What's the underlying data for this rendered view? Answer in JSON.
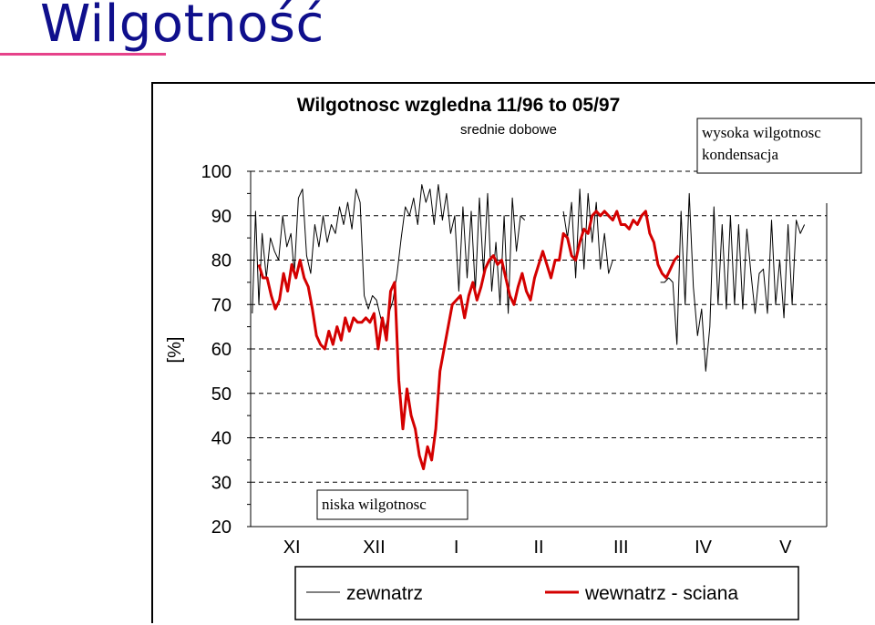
{
  "slide": {
    "title": "Wilgotność"
  },
  "chart_data": {
    "type": "line",
    "title": "Wilgotnosc wzgledna 11/96 to 05/97",
    "subtitle": "srednie dobowe",
    "ylabel": "[%]",
    "xlabel": "",
    "ylim": [
      20,
      100
    ],
    "yticks": [
      20,
      30,
      40,
      50,
      60,
      70,
      80,
      90,
      100
    ],
    "x_categories": [
      "XI",
      "XII",
      "I",
      "II",
      "III",
      "IV",
      "V"
    ],
    "xlim": [
      0,
      7
    ],
    "grid": {
      "horizontal_dashed": true
    },
    "legend": {
      "position": "bottom"
    },
    "annotations": [
      {
        "text": "wysoka wilgotnosc kondensacja",
        "lines": [
          "wysoka wilgotnosc",
          "kondensacja"
        ]
      },
      {
        "text": "niska wilgotnosc",
        "lines": [
          "niska wilgotnosc"
        ]
      }
    ],
    "series": [
      {
        "name": "zewnatrz",
        "color": "#000000",
        "segments": [
          [
            [
              0.02,
              68
            ],
            [
              0.06,
              91
            ],
            [
              0.1,
              70
            ],
            [
              0.14,
              86
            ],
            [
              0.19,
              76
            ],
            [
              0.24,
              85
            ],
            [
              0.29,
              82
            ],
            [
              0.34,
              80
            ],
            [
              0.39,
              90
            ],
            [
              0.44,
              83
            ],
            [
              0.49,
              86
            ],
            [
              0.53,
              77
            ],
            [
              0.58,
              94
            ],
            [
              0.63,
              96
            ],
            [
              0.68,
              81
            ],
            [
              0.73,
              77
            ],
            [
              0.78,
              88
            ],
            [
              0.83,
              83
            ],
            [
              0.88,
              90
            ],
            [
              0.93,
              84
            ],
            [
              0.98,
              88
            ],
            [
              1.03,
              86
            ],
            [
              1.08,
              92
            ],
            [
              1.13,
              88
            ],
            [
              1.18,
              93
            ],
            [
              1.23,
              87
            ],
            [
              1.28,
              96
            ],
            [
              1.33,
              93
            ],
            [
              1.38,
              72
            ],
            [
              1.43,
              69
            ],
            [
              1.48,
              72
            ],
            [
              1.53,
              71
            ],
            [
              1.58,
              67
            ],
            [
              1.63,
              64
            ],
            [
              1.68,
              68
            ],
            [
              1.73,
              71
            ],
            [
              1.78,
              77
            ],
            [
              1.83,
              85
            ],
            [
              1.88,
              92
            ],
            [
              1.93,
              90
            ],
            [
              1.98,
              94
            ],
            [
              2.03,
              88
            ],
            [
              2.08,
              97
            ],
            [
              2.13,
              93
            ],
            [
              2.18,
              96
            ],
            [
              2.23,
              88
            ],
            [
              2.28,
              97
            ],
            [
              2.33,
              89
            ],
            [
              2.38,
              95
            ],
            [
              2.43,
              86
            ],
            [
              2.48,
              90
            ],
            [
              2.53,
              73
            ],
            [
              2.58,
              92
            ],
            [
              2.63,
              76
            ],
            [
              2.68,
              91
            ],
            [
              2.73,
              73
            ],
            [
              2.78,
              94
            ],
            [
              2.83,
              77
            ],
            [
              2.88,
              95
            ],
            [
              2.93,
              73
            ],
            [
              2.98,
              84
            ],
            [
              3.03,
              70
            ],
            [
              3.08,
              90
            ],
            [
              3.13,
              68
            ],
            [
              3.18,
              94
            ],
            [
              3.23,
              82
            ],
            [
              3.28,
              90
            ],
            [
              3.33,
              89
            ]
          ],
          [
            [
              3.8,
              91
            ],
            [
              3.85,
              85
            ],
            [
              3.9,
              93
            ],
            [
              3.95,
              76
            ],
            [
              4.0,
              96
            ],
            [
              4.05,
              78
            ],
            [
              4.1,
              95
            ],
            [
              4.15,
              84
            ],
            [
              4.2,
              93
            ],
            [
              4.25,
              78
            ],
            [
              4.3,
              86
            ],
            [
              4.35,
              77
            ],
            [
              4.4,
              80
            ]
          ],
          [
            [
              4.98,
              75
            ],
            [
              5.03,
              75
            ],
            [
              5.08,
              76
            ],
            [
              5.13,
              75
            ],
            [
              5.18,
              61
            ],
            [
              5.23,
              91
            ],
            [
              5.28,
              70
            ],
            [
              5.33,
              95
            ],
            [
              5.38,
              74
            ],
            [
              5.43,
              63
            ],
            [
              5.48,
              69
            ],
            [
              5.53,
              55
            ],
            [
              5.58,
              65
            ],
            [
              5.63,
              92
            ],
            [
              5.68,
              70
            ],
            [
              5.73,
              88
            ],
            [
              5.78,
              69
            ],
            [
              5.83,
              90
            ],
            [
              5.88,
              70
            ],
            [
              5.93,
              88
            ],
            [
              5.98,
              69
            ],
            [
              6.03,
              87
            ],
            [
              6.08,
              77
            ],
            [
              6.13,
              68
            ],
            [
              6.18,
              77
            ],
            [
              6.23,
              78
            ],
            [
              6.28,
              68
            ],
            [
              6.33,
              89
            ],
            [
              6.38,
              70
            ],
            [
              6.43,
              80
            ],
            [
              6.48,
              67
            ],
            [
              6.53,
              88
            ],
            [
              6.58,
              70
            ],
            [
              6.63,
              89
            ],
            [
              6.68,
              86
            ],
            [
              6.73,
              88
            ]
          ]
        ]
      },
      {
        "name": "wewnatrz - sciana",
        "color": "#d40000",
        "segments": [
          [
            [
              0.1,
              79
            ],
            [
              0.15,
              76
            ],
            [
              0.2,
              76
            ],
            [
              0.25,
              72
            ],
            [
              0.3,
              69
            ],
            [
              0.35,
              71
            ],
            [
              0.4,
              77
            ],
            [
              0.45,
              73
            ],
            [
              0.5,
              79
            ],
            [
              0.55,
              76
            ],
            [
              0.6,
              80
            ],
            [
              0.65,
              76
            ],
            [
              0.7,
              74
            ],
            [
              0.75,
              69
            ],
            [
              0.8,
              63
            ],
            [
              0.85,
              61
            ],
            [
              0.9,
              60
            ],
            [
              0.95,
              64
            ],
            [
              1.0,
              61
            ],
            [
              1.05,
              65
            ],
            [
              1.1,
              62
            ],
            [
              1.15,
              67
            ],
            [
              1.2,
              64
            ],
            [
              1.25,
              67
            ],
            [
              1.3,
              66
            ],
            [
              1.35,
              66
            ],
            [
              1.4,
              67
            ],
            [
              1.45,
              66
            ],
            [
              1.5,
              68
            ],
            [
              1.55,
              60
            ],
            [
              1.6,
              67
            ],
            [
              1.65,
              62
            ],
            [
              1.7,
              73
            ],
            [
              1.75,
              75
            ],
            [
              1.8,
              53
            ],
            [
              1.85,
              42
            ],
            [
              1.9,
              51
            ],
            [
              1.95,
              45
            ],
            [
              2.0,
              42
            ],
            [
              2.05,
              36
            ],
            [
              2.1,
              33
            ],
            [
              2.15,
              38
            ],
            [
              2.2,
              35
            ],
            [
              2.25,
              42
            ],
            [
              2.3,
              55
            ],
            [
              2.35,
              60
            ],
            [
              2.4,
              65
            ],
            [
              2.45,
              70
            ],
            [
              2.5,
              71
            ],
            [
              2.55,
              72
            ],
            [
              2.6,
              67
            ],
            [
              2.65,
              72
            ],
            [
              2.7,
              75
            ],
            [
              2.75,
              71
            ],
            [
              2.8,
              74
            ],
            [
              2.85,
              78
            ],
            [
              2.9,
              80
            ],
            [
              2.95,
              81
            ],
            [
              3.0,
              79
            ],
            [
              3.05,
              80
            ],
            [
              3.1,
              76
            ],
            [
              3.15,
              72
            ],
            [
              3.2,
              70
            ],
            [
              3.25,
              74
            ],
            [
              3.3,
              77
            ],
            [
              3.35,
              73
            ],
            [
              3.4,
              71
            ],
            [
              3.45,
              76
            ],
            [
              3.5,
              79
            ],
            [
              3.55,
              82
            ],
            [
              3.6,
              79
            ],
            [
              3.65,
              76
            ],
            [
              3.7,
              80
            ],
            [
              3.75,
              80
            ],
            [
              3.8,
              86
            ],
            [
              3.85,
              85
            ],
            [
              3.9,
              81
            ],
            [
              3.95,
              80
            ],
            [
              4.0,
              84
            ],
            [
              4.05,
              87
            ],
            [
              4.1,
              86
            ],
            [
              4.15,
              90
            ],
            [
              4.2,
              91
            ],
            [
              4.25,
              90
            ],
            [
              4.3,
              91
            ],
            [
              4.35,
              90
            ],
            [
              4.4,
              89
            ],
            [
              4.45,
              91
            ],
            [
              4.5,
              88
            ],
            [
              4.55,
              88
            ],
            [
              4.6,
              87
            ],
            [
              4.65,
              89
            ],
            [
              4.7,
              88
            ],
            [
              4.75,
              90
            ],
            [
              4.8,
              91
            ],
            [
              4.85,
              86
            ],
            [
              4.9,
              84
            ],
            [
              4.95,
              79
            ],
            [
              5.0,
              77
            ],
            [
              5.05,
              76
            ],
            [
              5.1,
              78
            ],
            [
              5.15,
              80
            ],
            [
              5.2,
              81
            ]
          ]
        ]
      }
    ]
  },
  "legend": {
    "items": [
      "zewnatrz",
      "wewnatrz - sciana"
    ]
  }
}
